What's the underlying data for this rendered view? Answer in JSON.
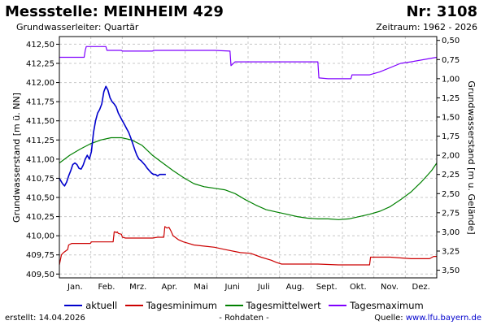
{
  "header": {
    "title": "Messstelle: MEINHEIM 429",
    "number": "Nr: 3108",
    "aquifer": "Grundwasserleiter: Quartär",
    "period": "Zeitraum: 1962 - 2026"
  },
  "footer": {
    "created": "erstellt:  14.04.2026",
    "raw": "- Rohdaten -",
    "source_label": "Quelle:",
    "source_url": "www.lfu.bayern.de"
  },
  "colors": {
    "aktuell": "#0000cc",
    "minimum": "#cc0000",
    "mittel": "#008000",
    "maximum": "#7f00ff",
    "grid": "#c8c8c8"
  },
  "chart_data": {
    "type": "line",
    "xlabel": "",
    "ylabel_left": "Grundwasserstand [m ü. NN]",
    "ylabel_right": "Grundwasserstand [m u. Gelände]",
    "xlim": [
      0,
      365
    ],
    "ylim_left": [
      409.45,
      412.6
    ],
    "ylim_right": [
      3.6,
      0.45
    ],
    "grid": true,
    "legend": "bottom",
    "categories": [
      "Jan.",
      "Feb.",
      "Mrz.",
      "Apr.",
      "Mai",
      "Juni",
      "Juli",
      "Aug.",
      "Sept.",
      "Okt.",
      "Nov.",
      "Dez."
    ],
    "y_ticks_left": [
      "409,50",
      "409,75",
      "410,00",
      "410,25",
      "410,50",
      "410,75",
      "411,00",
      "411,25",
      "411,50",
      "411,75",
      "412,00",
      "412,25",
      "412,50"
    ],
    "y_ticks_right": [
      "0,50",
      "0,75",
      "1,00",
      "1,25",
      "1,50",
      "1,75",
      "2,00",
      "2,25",
      "2,50",
      "2,75",
      "3,00",
      "3,25",
      "3,50"
    ],
    "series": [
      {
        "name": "aktuell",
        "key": "aktuell",
        "x": [
          0,
          3,
          5,
          7,
          9,
          11,
          13,
          15,
          17,
          19,
          21,
          23,
          25,
          27,
          29,
          31,
          33,
          35,
          37,
          39,
          41,
          43,
          45,
          47,
          49,
          51,
          53,
          55,
          57,
          59,
          61,
          63,
          65,
          67,
          69,
          71,
          73,
          75,
          77,
          79,
          81,
          83,
          85,
          87,
          89,
          91,
          93,
          95,
          97,
          99,
          101,
          103
        ],
        "y": [
          410.75,
          410.68,
          410.65,
          410.7,
          410.78,
          410.85,
          410.93,
          410.95,
          410.93,
          410.88,
          410.87,
          410.92,
          411.0,
          411.05,
          411.0,
          411.1,
          411.35,
          411.5,
          411.6,
          411.65,
          411.72,
          411.88,
          411.95,
          411.9,
          411.8,
          411.75,
          411.72,
          411.68,
          411.6,
          411.55,
          411.5,
          411.45,
          411.4,
          411.35,
          411.28,
          411.2,
          411.12,
          411.05,
          411.0,
          410.98,
          410.95,
          410.92,
          410.88,
          410.85,
          410.82,
          410.8,
          410.8,
          410.78,
          410.8,
          410.8,
          410.8,
          410.8
        ]
      },
      {
        "name": "Tagesminimum",
        "key": "minimum",
        "x": [
          0,
          2,
          4,
          8,
          9,
          12,
          16,
          30,
          31,
          35,
          36,
          52,
          53,
          54,
          55,
          56,
          57,
          60,
          61,
          64,
          65,
          68,
          75,
          90,
          95,
          101,
          102,
          104,
          106,
          108,
          110,
          112,
          115,
          120,
          125,
          130,
          150,
          160,
          175,
          185,
          195,
          205,
          210,
          215,
          230,
          250,
          270,
          290,
          300,
          301,
          320,
          340,
          358,
          362,
          365
        ],
        "y": [
          409.62,
          409.75,
          409.78,
          409.82,
          409.88,
          409.9,
          409.9,
          409.9,
          409.92,
          409.92,
          409.92,
          409.92,
          410.05,
          410.05,
          410.04,
          410.05,
          410.03,
          410.02,
          409.98,
          409.97,
          409.97,
          409.97,
          409.97,
          409.97,
          409.98,
          409.98,
          410.12,
          410.1,
          410.11,
          410.06,
          410.0,
          409.98,
          409.95,
          409.92,
          409.9,
          409.88,
          409.85,
          409.82,
          409.78,
          409.77,
          409.72,
          409.68,
          409.65,
          409.63,
          409.63,
          409.63,
          409.62,
          409.62,
          409.62,
          409.72,
          409.72,
          409.7,
          409.7,
          409.73,
          409.73
        ]
      },
      {
        "name": "Tagesmittelwert",
        "key": "mittel",
        "x": [
          0,
          10,
          20,
          30,
          40,
          50,
          60,
          70,
          80,
          90,
          100,
          110,
          120,
          130,
          140,
          150,
          160,
          170,
          180,
          190,
          200,
          210,
          220,
          230,
          240,
          250,
          260,
          270,
          280,
          290,
          300,
          310,
          320,
          330,
          340,
          350,
          360,
          365
        ],
        "y": [
          410.95,
          411.05,
          411.13,
          411.2,
          411.25,
          411.28,
          411.28,
          411.25,
          411.18,
          411.05,
          410.95,
          410.85,
          410.76,
          410.68,
          410.64,
          410.62,
          410.6,
          410.55,
          410.47,
          410.4,
          410.34,
          410.31,
          410.28,
          410.25,
          410.23,
          410.22,
          410.22,
          410.21,
          410.22,
          410.25,
          410.28,
          410.32,
          410.38,
          410.47,
          410.57,
          410.7,
          410.85,
          410.95
        ]
      },
      {
        "name": "Tagesmaximum",
        "key": "maximum",
        "x": [
          0,
          24,
          25,
          26,
          45,
          46,
          60,
          61,
          90,
          91,
          120,
          121,
          150,
          165,
          166,
          170,
          190,
          200,
          210,
          220,
          221,
          232,
          233,
          245,
          250,
          251,
          260,
          282,
          283,
          300,
          310,
          330,
          340,
          365
        ],
        "y": [
          412.33,
          412.33,
          412.42,
          412.47,
          412.47,
          412.42,
          412.42,
          412.41,
          412.41,
          412.42,
          412.42,
          412.42,
          412.42,
          412.41,
          412.22,
          412.27,
          412.27,
          412.27,
          412.27,
          412.27,
          412.27,
          412.27,
          412.27,
          412.27,
          412.27,
          412.06,
          412.05,
          412.05,
          412.1,
          412.1,
          412.14,
          412.25,
          412.27,
          412.33
        ]
      }
    ]
  }
}
